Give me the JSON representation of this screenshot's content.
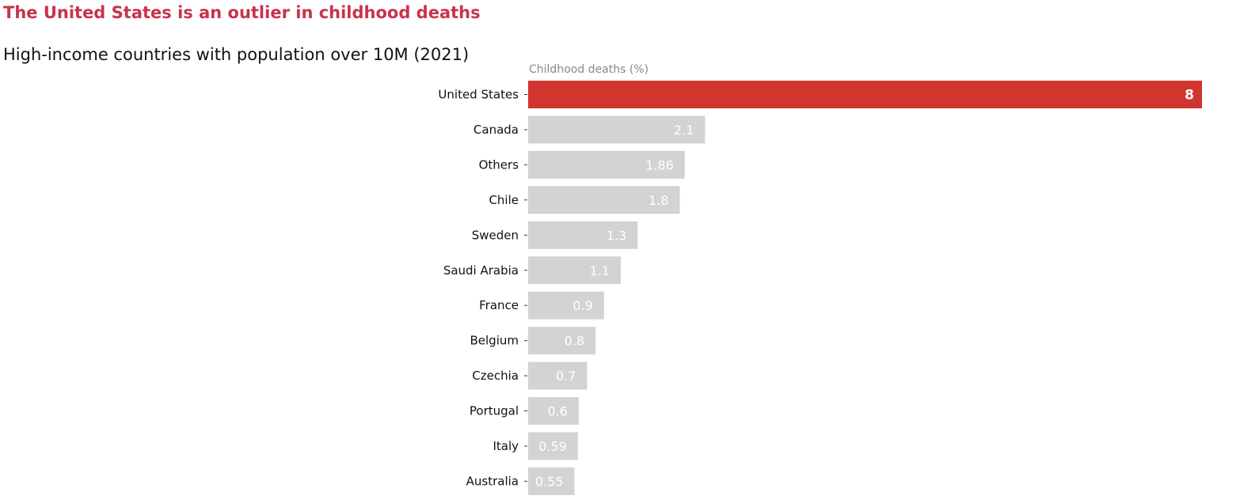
{
  "header": {
    "title": "The United States is an outlier in childhood deaths",
    "subtitle": "High-income countries with population over 10M (2021)"
  },
  "chart_data": {
    "type": "bar",
    "orientation": "horizontal",
    "title": "The United States is an outlier in childhood deaths",
    "subtitle": "High-income countries with population over 10M (2021)",
    "xlabel": "Childhood deaths (%)",
    "ylabel": "",
    "categories": [
      "United States",
      "Canada",
      "Others",
      "Chile",
      "Sweden",
      "Saudi Arabia",
      "France",
      "Belgium",
      "Czechia",
      "Portugal",
      "Italy",
      "Australia"
    ],
    "values": [
      8,
      2.1,
      1.86,
      1.8,
      1.3,
      1.1,
      0.9,
      0.8,
      0.7,
      0.6,
      0.59,
      0.55
    ],
    "value_labels": [
      "8",
      "2.1",
      "1.86",
      "1.8",
      "1.3",
      "1.1",
      "0.9",
      "0.8",
      "0.7",
      "0.6",
      "0.59",
      "0.55"
    ],
    "highlight_category": "United States",
    "xlim": [
      0,
      8
    ],
    "grid": false,
    "colors": {
      "highlight": "#d0362e",
      "default": "#d3d3d3",
      "title": "#c8334a",
      "label_text": "#111111",
      "axis_label": "#888888"
    }
  }
}
